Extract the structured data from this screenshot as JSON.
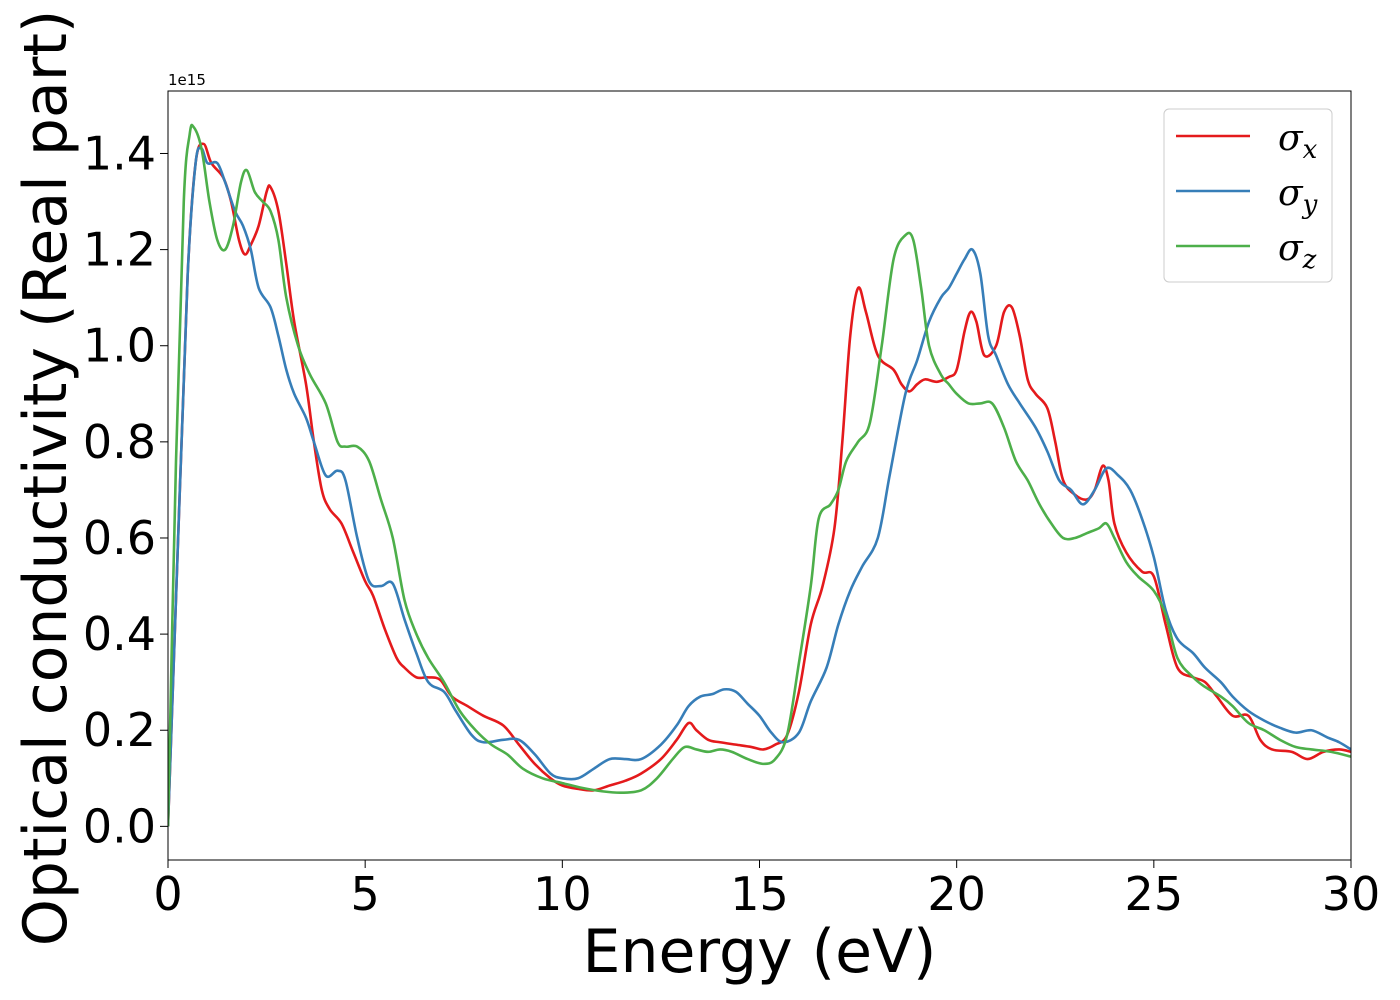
{
  "chart_data": {
    "type": "line",
    "title": "",
    "xlabel": "Energy (eV)",
    "ylabel": "Optical conductivity (Real part)",
    "y_offset_text": "1e15",
    "xlim": [
      0,
      30
    ],
    "ylim": [
      -0.07,
      1.53
    ],
    "xticks": [
      0,
      5,
      10,
      15,
      20,
      25,
      30
    ],
    "xtick_labels": [
      "0",
      "5",
      "10",
      "15",
      "20",
      "25",
      "30"
    ],
    "yticks": [
      0.0,
      0.2,
      0.4,
      0.6,
      0.8,
      1.0,
      1.2,
      1.4
    ],
    "ytick_labels": [
      "0.0",
      "0.2",
      "0.4",
      "0.6",
      "0.8",
      "1.0",
      "1.2",
      "1.4"
    ],
    "grid": false,
    "legend_position": "top-right",
    "series": [
      {
        "name": "σx",
        "symbol": "σ",
        "subscript": "x",
        "color": "#e41a1c",
        "points": [
          [
            0,
            0.0
          ],
          [
            0.3,
            0.7
          ],
          [
            0.5,
            1.15
          ],
          [
            0.7,
            1.38
          ],
          [
            0.9,
            1.42
          ],
          [
            1.1,
            1.38
          ],
          [
            1.4,
            1.35
          ],
          [
            1.6,
            1.3
          ],
          [
            1.8,
            1.22
          ],
          [
            1.95,
            1.19
          ],
          [
            2.1,
            1.21
          ],
          [
            2.3,
            1.25
          ],
          [
            2.5,
            1.32
          ],
          [
            2.6,
            1.33
          ],
          [
            2.8,
            1.28
          ],
          [
            3.0,
            1.17
          ],
          [
            3.2,
            1.05
          ],
          [
            3.5,
            0.92
          ],
          [
            3.7,
            0.8
          ],
          [
            3.9,
            0.7
          ],
          [
            4.1,
            0.66
          ],
          [
            4.4,
            0.63
          ],
          [
            4.7,
            0.57
          ],
          [
            5.0,
            0.51
          ],
          [
            5.2,
            0.48
          ],
          [
            5.5,
            0.41
          ],
          [
            5.8,
            0.35
          ],
          [
            6.0,
            0.33
          ],
          [
            6.3,
            0.31
          ],
          [
            6.6,
            0.31
          ],
          [
            6.9,
            0.305
          ],
          [
            7.2,
            0.27
          ],
          [
            7.6,
            0.25
          ],
          [
            8.0,
            0.23
          ],
          [
            8.5,
            0.21
          ],
          [
            8.9,
            0.17
          ],
          [
            9.3,
            0.13
          ],
          [
            9.7,
            0.1
          ],
          [
            10.0,
            0.085
          ],
          [
            10.4,
            0.078
          ],
          [
            10.8,
            0.075
          ],
          [
            11.2,
            0.085
          ],
          [
            11.6,
            0.095
          ],
          [
            12.0,
            0.11
          ],
          [
            12.5,
            0.14
          ],
          [
            12.9,
            0.18
          ],
          [
            13.2,
            0.215
          ],
          [
            13.4,
            0.2
          ],
          [
            13.7,
            0.18
          ],
          [
            14.0,
            0.175
          ],
          [
            14.4,
            0.17
          ],
          [
            14.8,
            0.165
          ],
          [
            15.1,
            0.16
          ],
          [
            15.4,
            0.17
          ],
          [
            15.7,
            0.19
          ],
          [
            16.0,
            0.28
          ],
          [
            16.3,
            0.42
          ],
          [
            16.6,
            0.5
          ],
          [
            16.9,
            0.62
          ],
          [
            17.1,
            0.8
          ],
          [
            17.3,
            1.02
          ],
          [
            17.5,
            1.12
          ],
          [
            17.7,
            1.07
          ],
          [
            18.0,
            0.98
          ],
          [
            18.4,
            0.95
          ],
          [
            18.6,
            0.92
          ],
          [
            18.8,
            0.905
          ],
          [
            19.0,
            0.92
          ],
          [
            19.2,
            0.93
          ],
          [
            19.5,
            0.925
          ],
          [
            19.8,
            0.935
          ],
          [
            20.0,
            0.95
          ],
          [
            20.2,
            1.03
          ],
          [
            20.35,
            1.07
          ],
          [
            20.5,
            1.05
          ],
          [
            20.7,
            0.98
          ],
          [
            21.0,
            1.0
          ],
          [
            21.2,
            1.07
          ],
          [
            21.4,
            1.08
          ],
          [
            21.6,
            1.02
          ],
          [
            21.8,
            0.93
          ],
          [
            22.0,
            0.9
          ],
          [
            22.3,
            0.87
          ],
          [
            22.5,
            0.8
          ],
          [
            22.7,
            0.72
          ],
          [
            23.0,
            0.69
          ],
          [
            23.3,
            0.68
          ],
          [
            23.5,
            0.7
          ],
          [
            23.7,
            0.75
          ],
          [
            23.85,
            0.72
          ],
          [
            24.0,
            0.63
          ],
          [
            24.3,
            0.57
          ],
          [
            24.7,
            0.53
          ],
          [
            25.0,
            0.52
          ],
          [
            25.3,
            0.42
          ],
          [
            25.6,
            0.33
          ],
          [
            26.0,
            0.31
          ],
          [
            26.3,
            0.3
          ],
          [
            26.6,
            0.27
          ],
          [
            27.0,
            0.23
          ],
          [
            27.4,
            0.23
          ],
          [
            27.7,
            0.18
          ],
          [
            28.0,
            0.16
          ],
          [
            28.5,
            0.155
          ],
          [
            28.9,
            0.14
          ],
          [
            29.3,
            0.155
          ],
          [
            29.7,
            0.16
          ],
          [
            30.0,
            0.155
          ]
        ]
      },
      {
        "name": "σy",
        "symbol": "σ",
        "subscript": "y",
        "color": "#377eb8",
        "points": [
          [
            0,
            0.0
          ],
          [
            0.3,
            0.7
          ],
          [
            0.5,
            1.15
          ],
          [
            0.7,
            1.38
          ],
          [
            0.85,
            1.41
          ],
          [
            1.0,
            1.38
          ],
          [
            1.25,
            1.38
          ],
          [
            1.45,
            1.34
          ],
          [
            1.7,
            1.28
          ],
          [
            1.9,
            1.25
          ],
          [
            2.1,
            1.2
          ],
          [
            2.3,
            1.12
          ],
          [
            2.6,
            1.08
          ],
          [
            2.8,
            1.02
          ],
          [
            3.0,
            0.95
          ],
          [
            3.2,
            0.9
          ],
          [
            3.5,
            0.85
          ],
          [
            3.7,
            0.8
          ],
          [
            4.0,
            0.73
          ],
          [
            4.3,
            0.74
          ],
          [
            4.5,
            0.72
          ],
          [
            4.8,
            0.6
          ],
          [
            5.1,
            0.51
          ],
          [
            5.4,
            0.5
          ],
          [
            5.7,
            0.505
          ],
          [
            6.0,
            0.43
          ],
          [
            6.3,
            0.36
          ],
          [
            6.6,
            0.3
          ],
          [
            7.0,
            0.28
          ],
          [
            7.3,
            0.24
          ],
          [
            7.7,
            0.19
          ],
          [
            8.0,
            0.175
          ],
          [
            8.5,
            0.18
          ],
          [
            8.9,
            0.18
          ],
          [
            9.3,
            0.15
          ],
          [
            9.7,
            0.11
          ],
          [
            10.0,
            0.1
          ],
          [
            10.4,
            0.1
          ],
          [
            10.8,
            0.12
          ],
          [
            11.2,
            0.14
          ],
          [
            11.6,
            0.14
          ],
          [
            12.0,
            0.14
          ],
          [
            12.5,
            0.17
          ],
          [
            12.9,
            0.21
          ],
          [
            13.2,
            0.25
          ],
          [
            13.5,
            0.27
          ],
          [
            13.8,
            0.275
          ],
          [
            14.1,
            0.285
          ],
          [
            14.4,
            0.28
          ],
          [
            14.7,
            0.255
          ],
          [
            15.0,
            0.23
          ],
          [
            15.3,
            0.195
          ],
          [
            15.6,
            0.175
          ],
          [
            16.0,
            0.195
          ],
          [
            16.3,
            0.26
          ],
          [
            16.7,
            0.33
          ],
          [
            17.0,
            0.42
          ],
          [
            17.3,
            0.49
          ],
          [
            17.6,
            0.54
          ],
          [
            18.0,
            0.6
          ],
          [
            18.3,
            0.73
          ],
          [
            18.7,
            0.9
          ],
          [
            19.0,
            0.97
          ],
          [
            19.3,
            1.05
          ],
          [
            19.6,
            1.1
          ],
          [
            19.8,
            1.12
          ],
          [
            20.0,
            1.15
          ],
          [
            20.2,
            1.18
          ],
          [
            20.4,
            1.2
          ],
          [
            20.6,
            1.15
          ],
          [
            20.8,
            1.02
          ],
          [
            21.0,
            0.98
          ],
          [
            21.3,
            0.92
          ],
          [
            21.6,
            0.88
          ],
          [
            22.0,
            0.83
          ],
          [
            22.3,
            0.78
          ],
          [
            22.6,
            0.72
          ],
          [
            22.9,
            0.7
          ],
          [
            23.2,
            0.67
          ],
          [
            23.5,
            0.7
          ],
          [
            23.8,
            0.745
          ],
          [
            24.1,
            0.73
          ],
          [
            24.4,
            0.7
          ],
          [
            24.7,
            0.64
          ],
          [
            25.0,
            0.56
          ],
          [
            25.3,
            0.45
          ],
          [
            25.6,
            0.39
          ],
          [
            26.0,
            0.36
          ],
          [
            26.3,
            0.33
          ],
          [
            26.7,
            0.3
          ],
          [
            27.0,
            0.27
          ],
          [
            27.4,
            0.24
          ],
          [
            27.8,
            0.22
          ],
          [
            28.2,
            0.205
          ],
          [
            28.6,
            0.195
          ],
          [
            29.0,
            0.2
          ],
          [
            29.4,
            0.185
          ],
          [
            29.7,
            0.175
          ],
          [
            30.0,
            0.16
          ]
        ]
      },
      {
        "name": "σz",
        "symbol": "σ",
        "subscript": "z",
        "color": "#4daf4a",
        "points": [
          [
            0,
            0.0
          ],
          [
            0.2,
            0.75
          ],
          [
            0.4,
            1.3
          ],
          [
            0.55,
            1.44
          ],
          [
            0.65,
            1.455
          ],
          [
            0.85,
            1.41
          ],
          [
            1.05,
            1.3
          ],
          [
            1.25,
            1.22
          ],
          [
            1.45,
            1.2
          ],
          [
            1.65,
            1.25
          ],
          [
            1.85,
            1.34
          ],
          [
            2.0,
            1.365
          ],
          [
            2.2,
            1.32
          ],
          [
            2.4,
            1.3
          ],
          [
            2.6,
            1.28
          ],
          [
            2.8,
            1.22
          ],
          [
            3.0,
            1.1
          ],
          [
            3.3,
            1.0
          ],
          [
            3.6,
            0.94
          ],
          [
            4.0,
            0.88
          ],
          [
            4.3,
            0.8
          ],
          [
            4.5,
            0.79
          ],
          [
            4.8,
            0.79
          ],
          [
            5.1,
            0.76
          ],
          [
            5.4,
            0.68
          ],
          [
            5.7,
            0.6
          ],
          [
            6.0,
            0.47
          ],
          [
            6.3,
            0.4
          ],
          [
            6.6,
            0.35
          ],
          [
            7.0,
            0.3
          ],
          [
            7.4,
            0.24
          ],
          [
            7.8,
            0.2
          ],
          [
            8.2,
            0.17
          ],
          [
            8.6,
            0.15
          ],
          [
            9.0,
            0.12
          ],
          [
            9.5,
            0.1
          ],
          [
            10.0,
            0.09
          ],
          [
            10.5,
            0.08
          ],
          [
            11.0,
            0.073
          ],
          [
            11.5,
            0.07
          ],
          [
            12.0,
            0.075
          ],
          [
            12.4,
            0.1
          ],
          [
            12.8,
            0.14
          ],
          [
            13.1,
            0.165
          ],
          [
            13.4,
            0.16
          ],
          [
            13.7,
            0.155
          ],
          [
            14.0,
            0.16
          ],
          [
            14.3,
            0.155
          ],
          [
            14.7,
            0.14
          ],
          [
            15.1,
            0.13
          ],
          [
            15.4,
            0.14
          ],
          [
            15.7,
            0.19
          ],
          [
            16.0,
            0.34
          ],
          [
            16.3,
            0.5
          ],
          [
            16.5,
            0.64
          ],
          [
            16.8,
            0.67
          ],
          [
            17.0,
            0.7
          ],
          [
            17.2,
            0.76
          ],
          [
            17.5,
            0.8
          ],
          [
            17.8,
            0.84
          ],
          [
            18.1,
            1.0
          ],
          [
            18.4,
            1.18
          ],
          [
            18.7,
            1.23
          ],
          [
            18.9,
            1.22
          ],
          [
            19.1,
            1.12
          ],
          [
            19.3,
            1.0
          ],
          [
            19.6,
            0.94
          ],
          [
            19.8,
            0.92
          ],
          [
            20.0,
            0.9
          ],
          [
            20.3,
            0.88
          ],
          [
            20.6,
            0.88
          ],
          [
            20.9,
            0.88
          ],
          [
            21.2,
            0.83
          ],
          [
            21.5,
            0.76
          ],
          [
            21.8,
            0.72
          ],
          [
            22.1,
            0.67
          ],
          [
            22.4,
            0.63
          ],
          [
            22.7,
            0.6
          ],
          [
            23.0,
            0.6
          ],
          [
            23.3,
            0.61
          ],
          [
            23.6,
            0.62
          ],
          [
            23.8,
            0.63
          ],
          [
            24.0,
            0.6
          ],
          [
            24.3,
            0.55
          ],
          [
            24.6,
            0.52
          ],
          [
            25.0,
            0.49
          ],
          [
            25.3,
            0.44
          ],
          [
            25.6,
            0.35
          ],
          [
            26.0,
            0.31
          ],
          [
            26.3,
            0.29
          ],
          [
            26.7,
            0.27
          ],
          [
            27.0,
            0.25
          ],
          [
            27.4,
            0.215
          ],
          [
            27.8,
            0.2
          ],
          [
            28.2,
            0.18
          ],
          [
            28.6,
            0.165
          ],
          [
            29.0,
            0.16
          ],
          [
            29.5,
            0.155
          ],
          [
            30.0,
            0.145
          ]
        ]
      }
    ]
  }
}
